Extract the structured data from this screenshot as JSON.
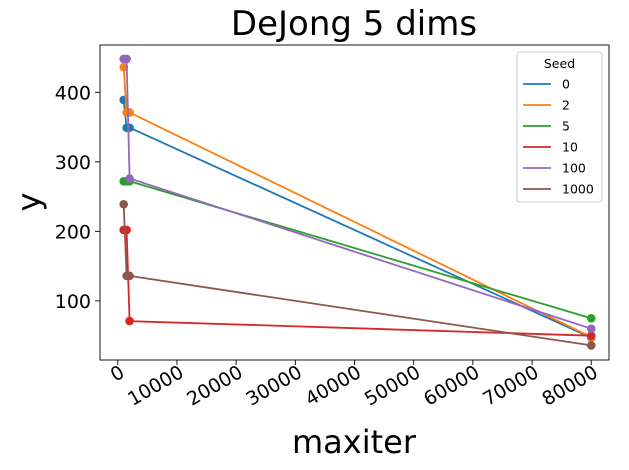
{
  "chart_data": {
    "type": "line",
    "title": "DeJong 5 dims",
    "xlabel": "maxiter",
    "ylabel": "y",
    "xlim": [
      -3000,
      83000
    ],
    "ylim": [
      15,
      468
    ],
    "xticks": [
      0,
      10000,
      20000,
      30000,
      40000,
      50000,
      60000,
      70000,
      80000
    ],
    "yticks": [
      100,
      200,
      300,
      400
    ],
    "grid": false,
    "legend": {
      "title": "Seed",
      "placement": "top-right"
    },
    "markers": true,
    "series": [
      {
        "name": "0",
        "color": "#1f77b4",
        "x": [
          1000,
          1500,
          2000,
          80000
        ],
        "y": [
          389,
          349,
          349,
          47
        ]
      },
      {
        "name": "2",
        "color": "#ff7f0e",
        "x": [
          1000,
          1500,
          2000,
          80000
        ],
        "y": [
          436,
          371,
          371,
          48
        ]
      },
      {
        "name": "5",
        "color": "#2ca02c",
        "x": [
          1000,
          1500,
          2000,
          80000
        ],
        "y": [
          272,
          272,
          272,
          75
        ]
      },
      {
        "name": "10",
        "color": "#d62728",
        "x": [
          1000,
          1500,
          2000,
          80000
        ],
        "y": [
          202,
          202,
          71,
          50
        ]
      },
      {
        "name": "100",
        "color": "#9467bd",
        "x": [
          1000,
          1500,
          2000,
          80000
        ],
        "y": [
          448,
          448,
          276,
          60
        ]
      },
      {
        "name": "1000",
        "color": "#8c564b",
        "x": [
          1000,
          1500,
          2000,
          80000
        ],
        "y": [
          239,
          136,
          136,
          36
        ]
      }
    ]
  }
}
